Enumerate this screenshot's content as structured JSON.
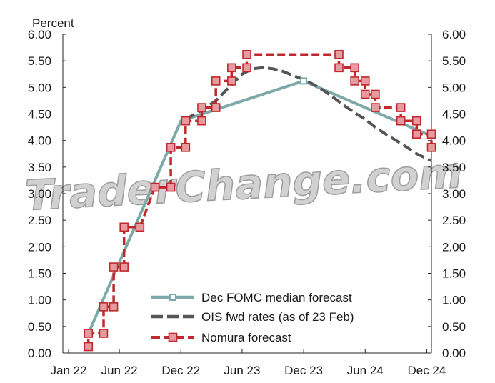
{
  "chart_data": {
    "type": "line",
    "unit_label": "Percent",
    "watermark": "TraderChange.com",
    "ylim": [
      0,
      6
    ],
    "y_ticks": [
      "0.00",
      "0.50",
      "1.00",
      "1.50",
      "2.00",
      "2.50",
      "3.00",
      "3.50",
      "4.00",
      "4.50",
      "5.00",
      "5.50",
      "6.00"
    ],
    "x_ticks": [
      {
        "label": "Jan 22",
        "date": "2022-01-01"
      },
      {
        "label": "Jun 22",
        "date": "2022-06-01"
      },
      {
        "label": "Dec 22",
        "date": "2022-12-01"
      },
      {
        "label": "Jun 23",
        "date": "2023-06-01"
      },
      {
        "label": "Dec 23",
        "date": "2023-12-01"
      },
      {
        "label": "Jun 24",
        "date": "2024-06-01"
      },
      {
        "label": "Dec 24",
        "date": "2024-12-01"
      }
    ],
    "xlim": [
      "2021-12-15",
      "2024-12-15"
    ],
    "grid": false,
    "legend_position": "bottom-right",
    "colors": {
      "fomc": "#7fa9a9",
      "ois": "#555555",
      "nomura": "#c0282d",
      "marker_fill": "#e79a9f"
    },
    "series": [
      {
        "name": "Dec FOMC median forecast",
        "style": "solid",
        "points": [
          {
            "x": "2022-03-01",
            "y": 0.37
          },
          {
            "x": "2022-12-01",
            "y": 4.37
          },
          {
            "x": "2023-12-01",
            "y": 5.12
          },
          {
            "x": "2024-12-01",
            "y": 4.12
          }
        ]
      },
      {
        "name": "OIS fwd rates (as of 23 Feb)",
        "style": "dashed",
        "points": [
          {
            "x": "2022-12-15",
            "y": 4.4
          },
          {
            "x": "2023-02-01",
            "y": 4.57
          },
          {
            "x": "2023-03-15",
            "y": 4.75
          },
          {
            "x": "2023-05-01",
            "y": 5.05
          },
          {
            "x": "2023-06-01",
            "y": 5.25
          },
          {
            "x": "2023-07-01",
            "y": 5.35
          },
          {
            "x": "2023-08-01",
            "y": 5.37
          },
          {
            "x": "2023-09-01",
            "y": 5.35
          },
          {
            "x": "2023-10-01",
            "y": 5.3
          },
          {
            "x": "2023-11-01",
            "y": 5.22
          },
          {
            "x": "2023-12-01",
            "y": 5.15
          },
          {
            "x": "2024-01-01",
            "y": 5.05
          },
          {
            "x": "2024-02-01",
            "y": 4.93
          },
          {
            "x": "2024-03-01",
            "y": 4.8
          },
          {
            "x": "2024-04-01",
            "y": 4.65
          },
          {
            "x": "2024-05-01",
            "y": 4.52
          },
          {
            "x": "2024-06-01",
            "y": 4.4
          },
          {
            "x": "2024-07-01",
            "y": 4.25
          },
          {
            "x": "2024-08-01",
            "y": 4.12
          },
          {
            "x": "2024-09-01",
            "y": 4.0
          },
          {
            "x": "2024-10-01",
            "y": 3.88
          },
          {
            "x": "2024-11-01",
            "y": 3.75
          },
          {
            "x": "2024-12-15",
            "y": 3.62
          }
        ]
      },
      {
        "name": "Nomura forecast",
        "style": "dashed-step",
        "points": [
          {
            "x": "2022-03-01",
            "y": 0.12
          },
          {
            "x": "2022-03-01",
            "y": 0.37
          },
          {
            "x": "2022-04-15",
            "y": 0.37
          },
          {
            "x": "2022-04-15",
            "y": 0.87
          },
          {
            "x": "2022-05-15",
            "y": 0.87
          },
          {
            "x": "2022-05-15",
            "y": 1.62
          },
          {
            "x": "2022-06-15",
            "y": 1.62
          },
          {
            "x": "2022-06-15",
            "y": 2.37
          },
          {
            "x": "2022-08-01",
            "y": 2.37
          },
          {
            "x": "2022-09-15",
            "y": 3.12
          },
          {
            "x": "2022-11-01",
            "y": 3.12
          },
          {
            "x": "2022-11-01",
            "y": 3.87
          },
          {
            "x": "2022-12-15",
            "y": 3.87
          },
          {
            "x": "2022-12-15",
            "y": 4.37
          },
          {
            "x": "2023-02-01",
            "y": 4.37
          },
          {
            "x": "2023-02-01",
            "y": 4.62
          },
          {
            "x": "2023-03-15",
            "y": 4.62
          },
          {
            "x": "2023-03-15",
            "y": 5.12
          },
          {
            "x": "2023-05-01",
            "y": 5.12
          },
          {
            "x": "2023-05-01",
            "y": 5.37
          },
          {
            "x": "2023-06-15",
            "y": 5.37
          },
          {
            "x": "2023-06-15",
            "y": 5.62
          },
          {
            "x": "2024-03-15",
            "y": 5.62
          },
          {
            "x": "2024-03-15",
            "y": 5.37
          },
          {
            "x": "2024-05-01",
            "y": 5.37
          },
          {
            "x": "2024-05-01",
            "y": 5.12
          },
          {
            "x": "2024-06-01",
            "y": 5.12
          },
          {
            "x": "2024-06-01",
            "y": 4.87
          },
          {
            "x": "2024-07-01",
            "y": 4.87
          },
          {
            "x": "2024-07-01",
            "y": 4.62
          },
          {
            "x": "2024-09-15",
            "y": 4.62
          },
          {
            "x": "2024-09-15",
            "y": 4.37
          },
          {
            "x": "2024-11-01",
            "y": 4.37
          },
          {
            "x": "2024-11-01",
            "y": 4.12
          },
          {
            "x": "2024-12-15",
            "y": 4.12
          },
          {
            "x": "2024-12-15",
            "y": 3.87
          }
        ]
      }
    ]
  }
}
